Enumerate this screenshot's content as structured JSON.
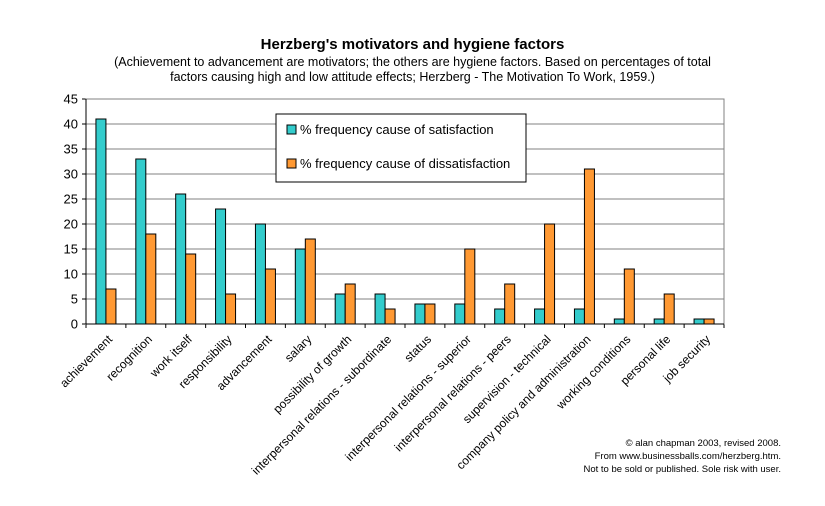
{
  "chart_data": {
    "type": "bar",
    "title": "Herzberg's motivators and hygiene factors",
    "subtitle_lines": [
      "(Achievement to advancement are motivators; the others are hygiene factors. Based on percentages of total",
      "factors causing high and low attitude effects; Herzberg - The Motivation To Work, 1959.)"
    ],
    "xlabel": "",
    "ylabel": "",
    "ylim": [
      0,
      45
    ],
    "yticks": [
      "0",
      "5",
      "10",
      "15",
      "20",
      "25",
      "30",
      "35",
      "40",
      "45"
    ],
    "grid": true,
    "legend_position": "top-center",
    "categories": [
      "achievement",
      "recognition",
      "work itself",
      "responsibility",
      "advancement",
      "salary",
      "possibility of growth",
      "interpersonal relations - subordinate",
      "status",
      "interpersonal relations - superior",
      "interpersonal relations - peers",
      "supervision - technical",
      "company policy and administration",
      "working conditions",
      "personal life",
      "job security"
    ],
    "series": [
      {
        "name": "% frequency cause of satisfaction",
        "color": "#33cccc",
        "values": [
          41,
          33,
          26,
          23,
          20,
          15,
          6,
          6,
          4,
          4,
          3,
          3,
          3,
          1,
          1,
          1
        ]
      },
      {
        "name": "% frequency cause of dissatisfaction",
        "color": "#ff9933",
        "values": [
          7,
          18,
          14,
          6,
          11,
          17,
          8,
          3,
          4,
          15,
          8,
          20,
          31,
          11,
          6,
          1
        ]
      }
    ]
  },
  "credit_lines": [
    "© alan chapman 2003, revised 2008.",
    "From www.businessballs.com/herzberg.htm.",
    "Not to be sold or published. Sole risk with user."
  ]
}
